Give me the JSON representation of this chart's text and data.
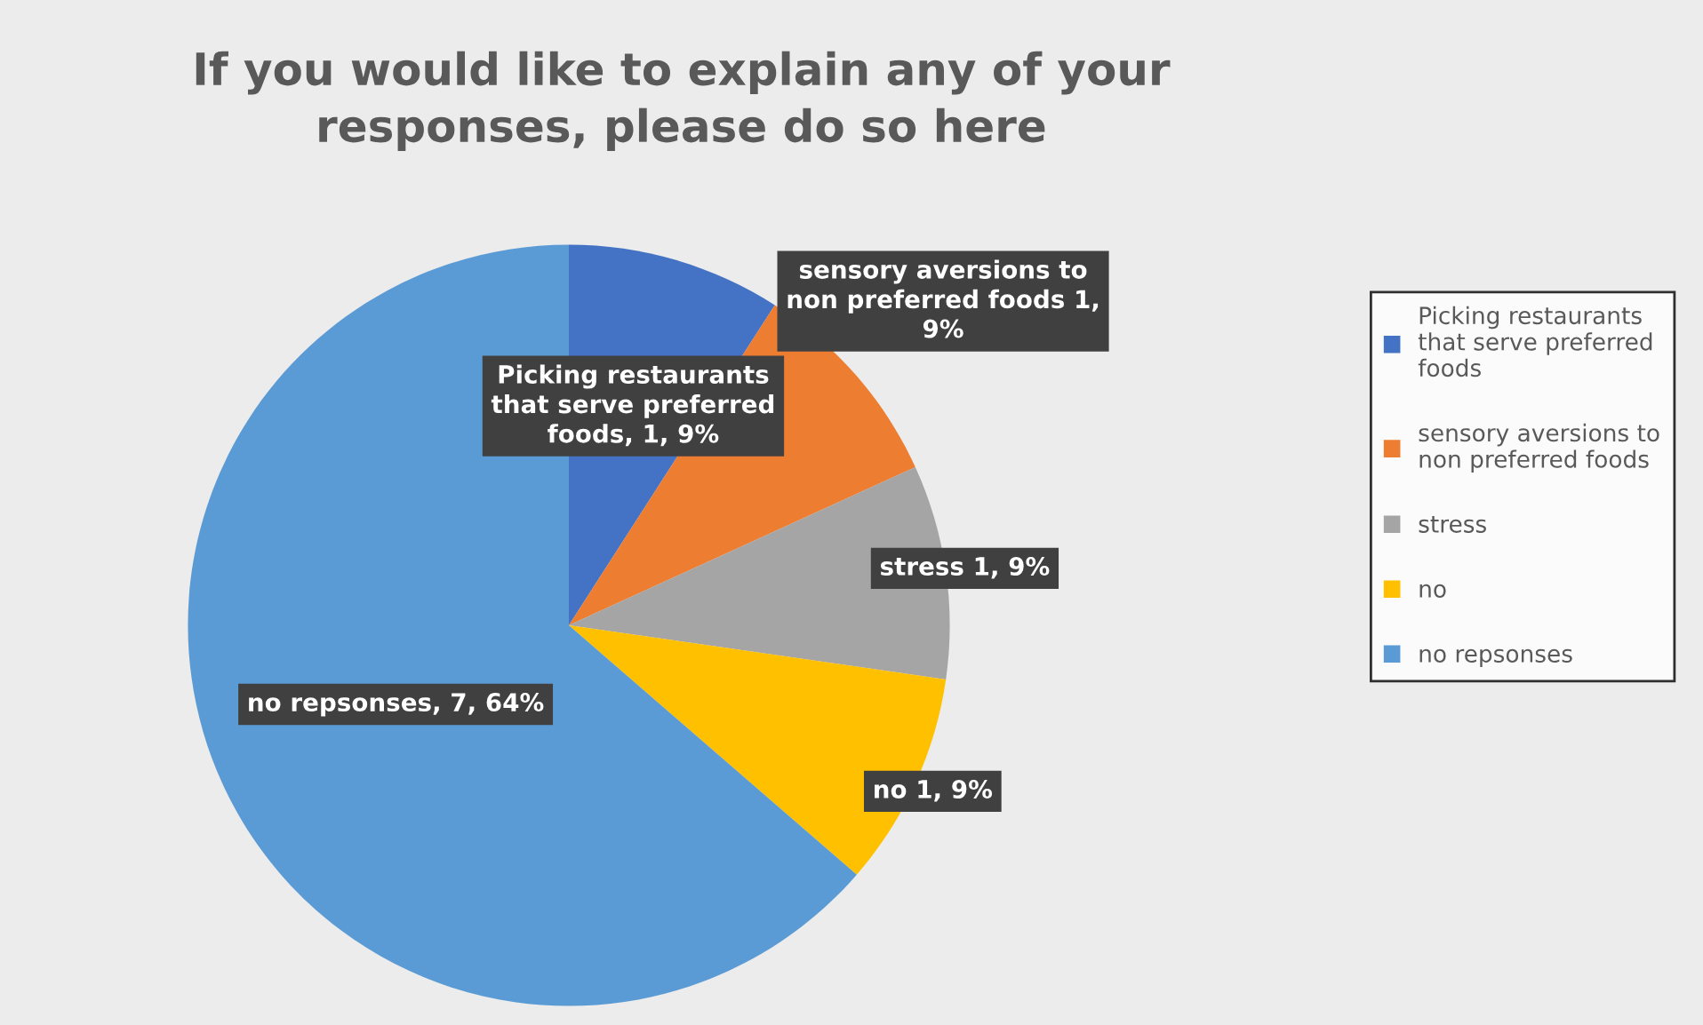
{
  "chart_data": {
    "type": "pie",
    "title": "If you would like to explain any of your responses, please do so here",
    "categories": [
      "Picking restaurants that serve preferred foods",
      "sensory aversions to non preferred foods",
      "stress",
      "no",
      "no repsonses"
    ],
    "values": [
      1,
      1,
      1,
      1,
      7
    ],
    "colors": [
      "#4472c4",
      "#ed7d31",
      "#a5a5a5",
      "#ffc000",
      "#5b9bd5"
    ],
    "value_labels": [
      "Picking restaurants that serve preferred foods, 1, 9%",
      "sensory aversions to non preferred foods 1, 9%",
      "stress 1, 9%",
      "no 1, 9%",
      "no repsonses, 7, 64%"
    ],
    "legend": "right"
  }
}
